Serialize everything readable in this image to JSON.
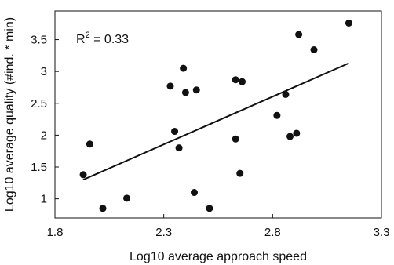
{
  "chart_data": {
    "type": "scatter",
    "title": "",
    "xlabel": "Log10 average approach speed",
    "ylabel": "Log10 average quality (#ind. * min)",
    "xlim": [
      1.8,
      3.3
    ],
    "ylim": [
      0.7,
      3.95
    ],
    "xticks": [
      1.8,
      2.3,
      2.8,
      3.3
    ],
    "xtick_labels": [
      "1.8",
      "2.3",
      "2.8",
      "3.3"
    ],
    "yticks": [
      1,
      1.5,
      2,
      2.5,
      3,
      3.5
    ],
    "ytick_labels": [
      "1",
      "1.5",
      "2",
      "2.5",
      "3",
      "3.5"
    ],
    "grid": false,
    "annotation": {
      "prefix": "R",
      "sup": "2",
      "suffix": " = 0.33"
    },
    "points": [
      {
        "x": 1.93,
        "y": 1.38
      },
      {
        "x": 1.96,
        "y": 1.86
      },
      {
        "x": 2.02,
        "y": 0.85
      },
      {
        "x": 2.13,
        "y": 1.01
      },
      {
        "x": 2.33,
        "y": 2.77
      },
      {
        "x": 2.35,
        "y": 2.06
      },
      {
        "x": 2.37,
        "y": 1.8
      },
      {
        "x": 2.39,
        "y": 3.05
      },
      {
        "x": 2.4,
        "y": 2.67
      },
      {
        "x": 2.44,
        "y": 1.1
      },
      {
        "x": 2.45,
        "y": 2.71
      },
      {
        "x": 2.51,
        "y": 0.85
      },
      {
        "x": 2.63,
        "y": 2.87
      },
      {
        "x": 2.63,
        "y": 1.94
      },
      {
        "x": 2.65,
        "y": 1.4
      },
      {
        "x": 2.66,
        "y": 2.84
      },
      {
        "x": 2.82,
        "y": 2.31
      },
      {
        "x": 2.86,
        "y": 2.64
      },
      {
        "x": 2.88,
        "y": 1.98
      },
      {
        "x": 2.91,
        "y": 2.03
      },
      {
        "x": 2.92,
        "y": 3.58
      },
      {
        "x": 2.99,
        "y": 3.34
      },
      {
        "x": 3.15,
        "y": 3.76
      }
    ],
    "fit_line": {
      "x": [
        1.93,
        3.15
      ],
      "y": [
        1.3,
        3.13
      ]
    }
  }
}
